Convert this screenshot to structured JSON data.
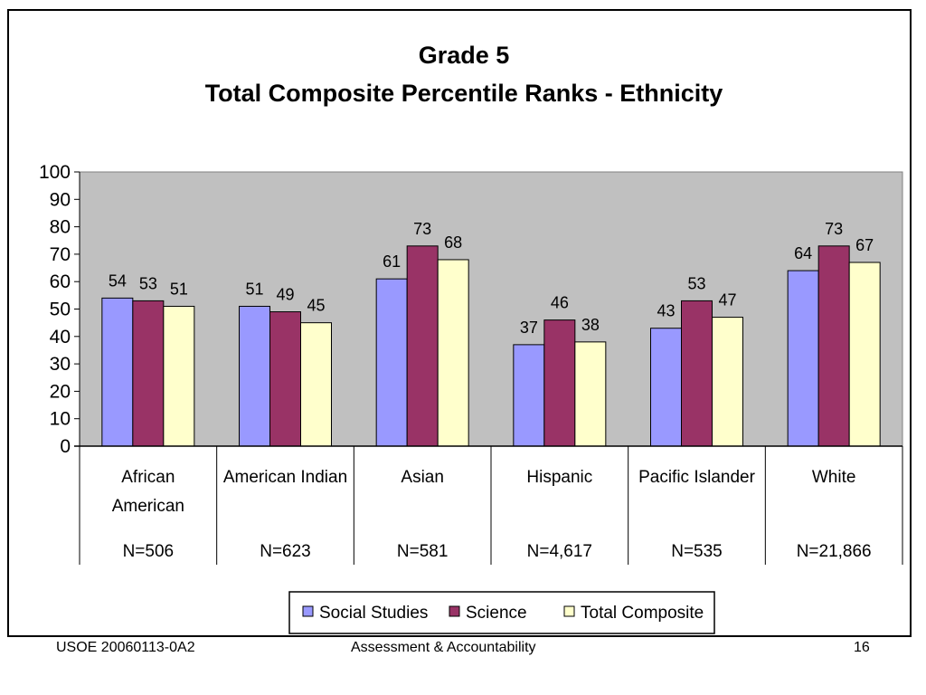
{
  "footer": {
    "left": "USOE 20060113-0A2",
    "center": "Assessment & Accountability",
    "right": "16"
  },
  "chart_data": {
    "type": "bar",
    "title": "Grade 5",
    "subtitle": "Total Composite Percentile Ranks - Ethnicity",
    "xlabel": "",
    "ylabel": "",
    "ylim": [
      0,
      100
    ],
    "yticks": [
      0,
      10,
      20,
      30,
      40,
      50,
      60,
      70,
      80,
      90,
      100
    ],
    "grid": false,
    "legend_position": "bottom",
    "plot_background": "#c0c0c0",
    "categories": [
      "African American",
      "American Indian",
      "Asian",
      "Hispanic",
      "Pacific Islander",
      "White"
    ],
    "category_lines": [
      [
        "African",
        "American"
      ],
      [
        "American Indian"
      ],
      [
        "Asian"
      ],
      [
        "Hispanic"
      ],
      [
        "Pacific Islander"
      ],
      [
        "White"
      ]
    ],
    "counts": [
      "N=506",
      "N=623",
      "N=581",
      "N=4,617",
      "N=535",
      "N=21,866"
    ],
    "series": [
      {
        "name": "Social Studies",
        "color": "#9999ff",
        "values": [
          54,
          51,
          61,
          37,
          43,
          64
        ]
      },
      {
        "name": "Science",
        "color": "#993366",
        "values": [
          53,
          49,
          73,
          46,
          53,
          73
        ]
      },
      {
        "name": "Total Composite",
        "color": "#ffffcc",
        "values": [
          51,
          45,
          68,
          38,
          47,
          67
        ]
      }
    ]
  }
}
